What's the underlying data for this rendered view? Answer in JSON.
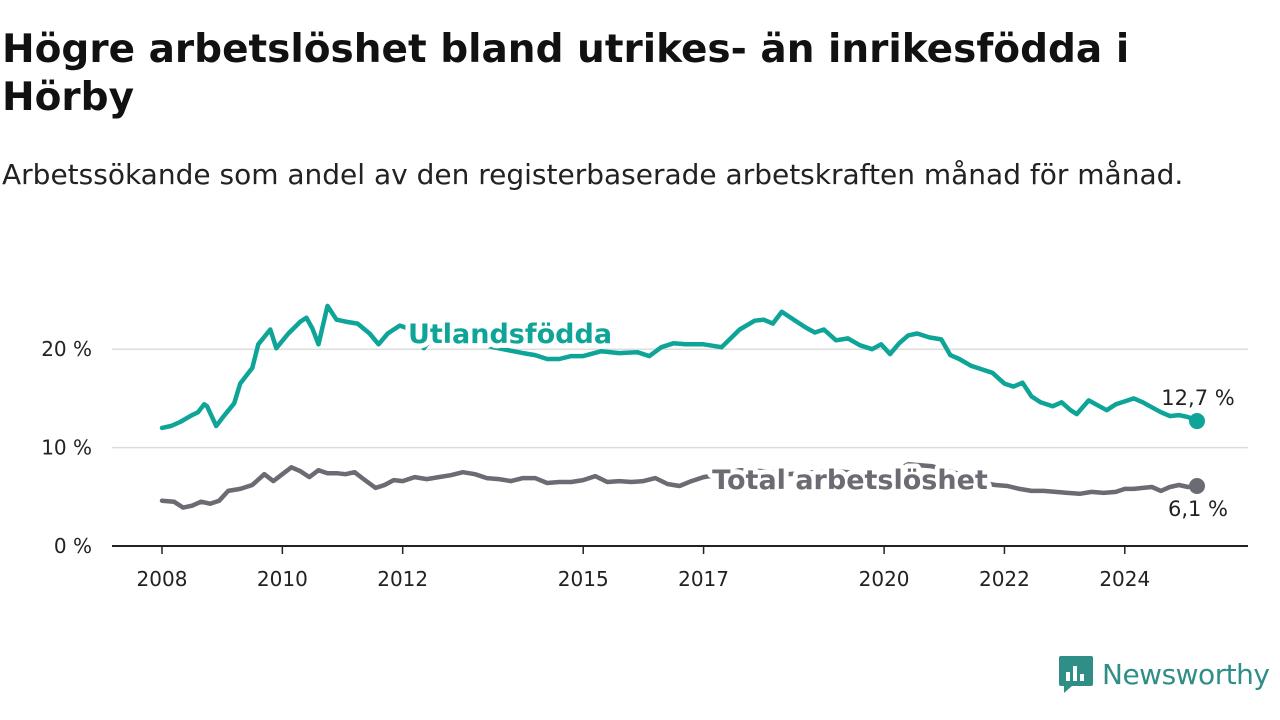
{
  "title": "Högre arbetslöshet bland utrikes- än inrikesfödda i Hörby",
  "subtitle": "Arbetssökande som andel av den registerbaserade arbetskraften månad för månad.",
  "brand": {
    "name": "Newsworthy",
    "logo_icon": "newsworthy-logo-icon",
    "color": "#2f8f86"
  },
  "chart_data": {
    "type": "line",
    "x_ticks": [
      "2008",
      "2010",
      "2012",
      "2015",
      "2017",
      "2020",
      "2022",
      "2024"
    ],
    "y_ticks": [
      {
        "value": 0,
        "label": "0 %"
      },
      {
        "value": 10,
        "label": "10 %"
      },
      {
        "value": 20,
        "label": "20 %"
      }
    ],
    "xlim": [
      2007.95,
      2025.8
    ],
    "ylim": [
      0,
      25
    ],
    "grid": "horizontal",
    "series": [
      {
        "name": "Utlandsfödda",
        "color": "#0fa498",
        "end_label": "12,7 %",
        "x": [
          2008.0,
          2008.15,
          2008.3,
          2008.5,
          2008.6,
          2008.7,
          2008.75,
          2008.9,
          2009.0,
          2009.2,
          2009.3,
          2009.5,
          2009.6,
          2009.8,
          2009.9,
          2010.1,
          2010.3,
          2010.4,
          2010.5,
          2010.6,
          2010.75,
          2010.9,
          2011.05,
          2011.25,
          2011.45,
          2011.6,
          2011.75,
          2011.95,
          2012.15,
          2012.35,
          2012.6,
          2013.0,
          2013.5,
          2014.0,
          2014.2,
          2014.4,
          2014.6,
          2014.8,
          2015.0,
          2015.3,
          2015.6,
          2015.9,
          2016.1,
          2016.3,
          2016.5,
          2016.7,
          2017.0,
          2017.3,
          2017.6,
          2017.85,
          2018.0,
          2018.15,
          2018.3,
          2018.5,
          2018.7,
          2018.85,
          2019.0,
          2019.2,
          2019.4,
          2019.6,
          2019.8,
          2019.95,
          2020.1,
          2020.25,
          2020.4,
          2020.55,
          2020.75,
          2020.95,
          2021.1,
          2021.25,
          2021.45,
          2021.6,
          2021.8,
          2022.0,
          2022.15,
          2022.3,
          2022.45,
          2022.6,
          2022.8,
          2022.95,
          2023.1,
          2023.2,
          2023.4,
          2023.55,
          2023.7,
          2023.85,
          2024.0,
          2024.15,
          2024.3,
          2024.45,
          2024.6,
          2024.75,
          2024.9,
          2025.05,
          2025.2
        ],
        "values": [
          12.0,
          12.2,
          12.6,
          13.3,
          13.6,
          14.4,
          14.2,
          12.2,
          13.0,
          14.5,
          16.5,
          18.1,
          20.5,
          22.0,
          20.1,
          21.6,
          22.8,
          23.2,
          22.1,
          20.5,
          24.4,
          23.0,
          22.8,
          22.6,
          21.6,
          20.5,
          21.6,
          22.4,
          22.0,
          20.1,
          22.0,
          21.0,
          20.2,
          19.6,
          19.4,
          19.0,
          19.0,
          19.3,
          19.3,
          19.8,
          19.6,
          19.7,
          19.3,
          20.2,
          20.6,
          20.5,
          20.5,
          20.2,
          22.0,
          22.9,
          23.0,
          22.6,
          23.8,
          23.0,
          22.2,
          21.7,
          22.0,
          20.9,
          21.1,
          20.4,
          20.0,
          20.5,
          19.5,
          20.6,
          21.4,
          21.6,
          21.2,
          21.0,
          19.4,
          19.0,
          18.3,
          18.0,
          17.6,
          16.5,
          16.2,
          16.6,
          15.2,
          14.6,
          14.2,
          14.6,
          13.8,
          13.4,
          14.8,
          14.3,
          13.8,
          14.4,
          14.7,
          15.0,
          14.6,
          14.1,
          13.6,
          13.2,
          13.3,
          13.1,
          12.7
        ]
      },
      {
        "name": "Total arbetslöshet",
        "color": "#6b6b73",
        "end_label": "6,1 %",
        "x": [
          2008.0,
          2008.2,
          2008.35,
          2008.5,
          2008.65,
          2008.8,
          2008.95,
          2009.1,
          2009.3,
          2009.5,
          2009.7,
          2009.85,
          2010.0,
          2010.15,
          2010.3,
          2010.45,
          2010.6,
          2010.75,
          2010.9,
          2011.05,
          2011.2,
          2011.35,
          2011.55,
          2011.7,
          2011.85,
          2012.0,
          2012.2,
          2012.4,
          2012.6,
          2012.8,
          2013.0,
          2013.2,
          2013.4,
          2013.6,
          2013.8,
          2014.0,
          2014.2,
          2014.4,
          2014.6,
          2014.8,
          2015.0,
          2015.2,
          2015.4,
          2015.6,
          2015.8,
          2016.0,
          2016.2,
          2016.4,
          2016.6,
          2016.8,
          2017.0,
          2017.3,
          2017.6,
          2018.0,
          2018.4,
          2018.8,
          2019.2,
          2019.6,
          2020.0,
          2020.4,
          2020.8,
          2021.2,
          2021.45,
          2021.65,
          2021.85,
          2022.05,
          2022.25,
          2022.45,
          2022.65,
          2022.85,
          2023.05,
          2023.25,
          2023.45,
          2023.65,
          2023.85,
          2024.0,
          2024.15,
          2024.3,
          2024.45,
          2024.6,
          2024.75,
          2024.9,
          2025.05,
          2025.2
        ],
        "values": [
          4.6,
          4.5,
          3.9,
          4.1,
          4.5,
          4.3,
          4.6,
          5.6,
          5.8,
          6.2,
          7.3,
          6.6,
          7.3,
          8.0,
          7.6,
          7.0,
          7.7,
          7.4,
          7.4,
          7.3,
          7.5,
          6.8,
          5.9,
          6.2,
          6.7,
          6.6,
          7.0,
          6.8,
          7.0,
          7.2,
          7.5,
          7.3,
          6.9,
          6.8,
          6.6,
          6.9,
          6.9,
          6.4,
          6.5,
          6.5,
          6.7,
          7.1,
          6.5,
          6.6,
          6.5,
          6.6,
          6.9,
          6.3,
          6.1,
          6.6,
          7.0,
          7.3,
          7.7,
          7.6,
          7.3,
          7.5,
          7.6,
          7.4,
          7.1,
          8.3,
          8.1,
          7.4,
          6.9,
          6.4,
          6.2,
          6.1,
          5.8,
          5.6,
          5.6,
          5.5,
          5.4,
          5.3,
          5.5,
          5.4,
          5.5,
          5.8,
          5.8,
          5.9,
          6.0,
          5.6,
          6.0,
          6.2,
          6.0,
          6.1
        ]
      }
    ]
  }
}
